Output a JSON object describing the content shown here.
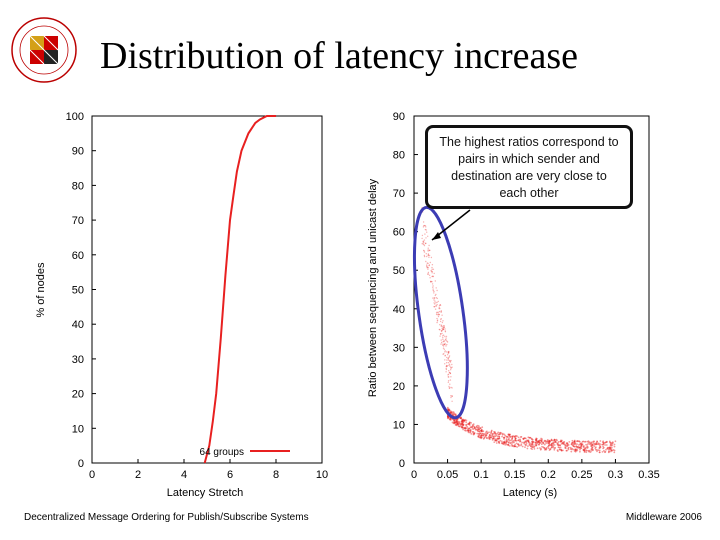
{
  "slide": {
    "title": "Distribution of latency increase",
    "footer_left": "Decentralized Message Ordering for Publish/Subscribe Systems",
    "footer_right": "Middleware 2006"
  },
  "logo": {
    "name": "university-of-maryland-seal",
    "text": "UNIVERSITY OF MARYLAND"
  },
  "callout": {
    "text": "The highest ratios correspond to pairs in which sender and destination are very close to each other"
  },
  "colors": {
    "series": "#e82020",
    "highlight": "#3c3cb4",
    "axis": "#000000"
  },
  "chart_data": [
    {
      "type": "line",
      "xlabel": "Latency Stretch",
      "ylabel": "% of nodes",
      "xlim": [
        0,
        10
      ],
      "ylim": [
        0,
        100
      ],
      "xticks": [
        "0",
        "2",
        "4",
        "6",
        "8",
        "10"
      ],
      "yticks": [
        "0",
        "10",
        "20",
        "30",
        "40",
        "50",
        "60",
        "70",
        "80",
        "90",
        "100"
      ],
      "series": [
        {
          "name": "64 groups",
          "x": [
            4.9,
            5.1,
            5.25,
            5.4,
            5.5,
            5.6,
            5.7,
            5.8,
            5.9,
            6.0,
            6.15,
            6.3,
            6.5,
            6.8,
            7.1,
            7.3,
            7.6,
            8.0
          ],
          "y": [
            0,
            5,
            12,
            20,
            28,
            36,
            45,
            54,
            62,
            70,
            77,
            84,
            90,
            95,
            98,
            99,
            100,
            100
          ]
        }
      ],
      "legend": "bottom-right"
    },
    {
      "type": "scatter",
      "xlabel": "Latency (s)",
      "ylabel": "Ratio between sequencing and unicast delay",
      "xlim": [
        0,
        0.35
      ],
      "ylim": [
        0,
        90
      ],
      "xticks": [
        "0",
        "0.05",
        "0.1",
        "0.15",
        "0.2",
        "0.25",
        "0.3",
        "0.35"
      ],
      "yticks": [
        "0",
        "10",
        "20",
        "30",
        "40",
        "50",
        "60",
        "70",
        "80",
        "90"
      ],
      "annotation": "highlighted cluster of high ratios at low latency",
      "highlight_region": {
        "x": [
          0.01,
          0.07
        ],
        "y": [
          13,
          65
        ]
      },
      "clusters": [
        {
          "name": "low-latency",
          "x": [
            0.01,
            0.06
          ],
          "y": [
            18,
            62
          ]
        },
        {
          "name": "main-tail",
          "x": [
            0.05,
            0.3
          ],
          "y": [
            4,
            14
          ]
        }
      ]
    }
  ]
}
